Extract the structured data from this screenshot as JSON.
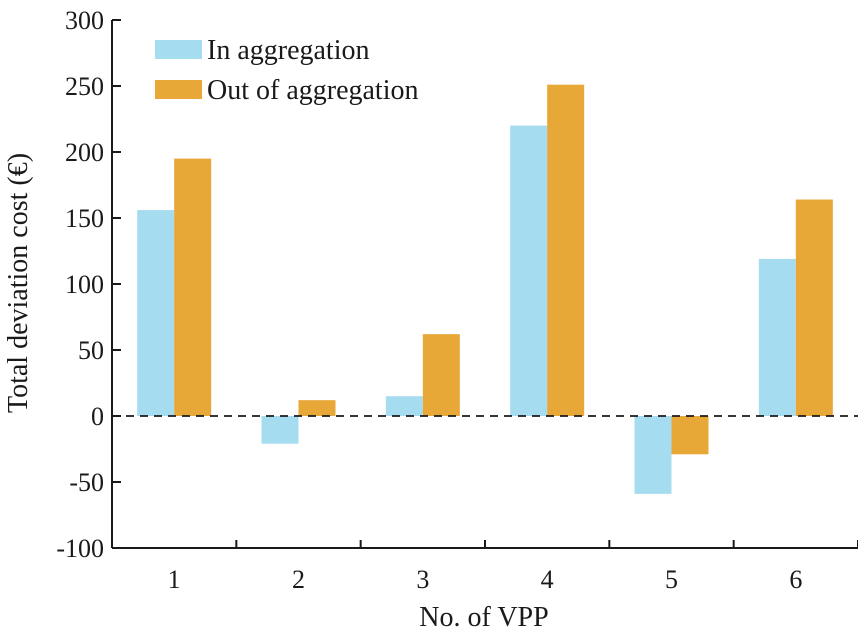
{
  "chart_data": {
    "type": "bar",
    "categories": [
      "1",
      "2",
      "3",
      "4",
      "5",
      "6"
    ],
    "series": [
      {
        "name": "In aggregation",
        "values": [
          156,
          -21,
          15,
          220,
          -59,
          119
        ],
        "color": "#a6dcef"
      },
      {
        "name": "Out of aggregation",
        "values": [
          195,
          12,
          62,
          251,
          -29,
          164
        ],
        "color": "#e8a838"
      }
    ],
    "xlabel": "No. of VPP",
    "ylabel": "Total deviation cost (€)",
    "ylim": [
      -100,
      300
    ],
    "yticks": [
      -100,
      -50,
      0,
      50,
      100,
      150,
      200,
      250,
      300
    ],
    "zero_line": "dashed",
    "grid": false,
    "legend_position": "top-left"
  }
}
